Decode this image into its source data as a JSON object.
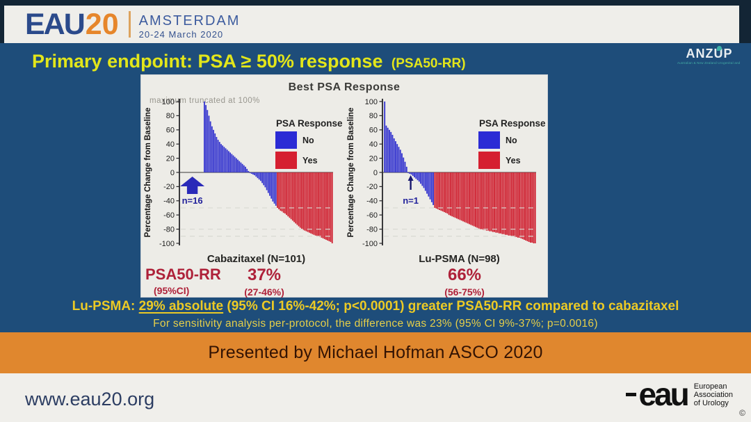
{
  "header": {
    "logo_eau": "EAU",
    "logo_20": "20",
    "city": "AMSTERDAM",
    "dates": "20-24 March 2020"
  },
  "title": {
    "main": "Primary endpoint: PSA ≥ 50% response",
    "sub": "(PSA50-RR)"
  },
  "anzup": {
    "name": "ANZUP",
    "tagline": "Australian & New Zealand Urogenital and Prostate Cancer Trials Group"
  },
  "panel": {
    "title": "Best PSA Response",
    "truncation_note": "maximum truncated at 100%"
  },
  "stats": {
    "label": "PSA50-RR",
    "sublabel": "(95%CI)",
    "cabazitaxel_value": "37%",
    "cabazitaxel_ci": "(27-46%)",
    "lupsma_value": "66%",
    "lupsma_ci": "(56-75%)"
  },
  "findings": {
    "line1_prefix": "Lu-PSMA: ",
    "line1_underlined": "29% absolute",
    "line1_suffix": " (95% CI 16%-42%; p<0.0001) greater PSA50-RR compared to cabazitaxel",
    "line2": "For sensitivity analysis per-protocol, the difference was 23% (95% CI 9%-37%; p=0.0016)"
  },
  "presenter_bar": {
    "text": "Presented by Michael Hofman ASCO 2020"
  },
  "footer": {
    "url": "www.eau20.org",
    "logo_text": "eau",
    "org_lines": [
      "European",
      "Association",
      "of Urology"
    ],
    "copyright": "©"
  },
  "colors": {
    "slide_bg": "#1e4d7a",
    "header_bg": "#efeeea",
    "title_yellow": "#e3e61a",
    "finding_yellow": "#ecca25",
    "stats_crimson": "#ae2139",
    "bar_blue": "#3434cf",
    "bar_red": "#cf1f2f",
    "orange_band": "#e0872e"
  },
  "chart_data": [
    {
      "type": "bar",
      "subtype": "waterfall",
      "title": "Best PSA Response",
      "xlabel": "Cabazitaxel (N=101)",
      "ylabel": "Percentage Change from Baseline",
      "ylim": [
        -100,
        100
      ],
      "yticks": [
        100,
        80,
        60,
        40,
        20,
        0,
        -20,
        -40,
        -60,
        -80,
        -100
      ],
      "threshold_lines": [
        -50,
        -80,
        -90
      ],
      "grid": "dashed thresholds only",
      "legend": {
        "title": "PSA Response",
        "position": "upper right of plot",
        "items": [
          {
            "label": "No",
            "color": "#2b2bd5"
          },
          {
            "label": "Yes",
            "color": "#d51f30"
          }
        ]
      },
      "truncation_note": "maximum truncated at 100%",
      "leading_empty_slots": 16,
      "annotation": {
        "label": "n=16",
        "slot": 8.5,
        "width_slots": 16,
        "style": "block"
      },
      "series": [
        {
          "name": "No (PSA50 response not achieved)",
          "color": "#3434cf",
          "values": [
            100,
            95,
            88,
            80,
            72,
            65,
            60,
            55,
            50,
            46,
            43,
            40,
            38,
            36,
            34,
            32,
            30,
            28,
            26,
            24,
            22,
            20,
            18,
            16,
            14,
            12,
            10,
            8,
            5,
            2,
            -1,
            -2,
            -3,
            -4,
            -6,
            -8,
            -10,
            -12,
            -15,
            -18,
            -21,
            -25,
            -29,
            -33,
            -37,
            -41,
            -44,
            -47
          ]
        },
        {
          "name": "Yes (≥50% PSA decline)",
          "color": "#cf1f2f",
          "values": [
            -50,
            -52,
            -54,
            -55,
            -57,
            -58,
            -60,
            -62,
            -64,
            -66,
            -68,
            -70,
            -72,
            -74,
            -76,
            -78,
            -80,
            -81,
            -82,
            -83,
            -84,
            -85,
            -86,
            -87,
            -88,
            -89,
            -90,
            -90,
            -91,
            -92,
            -93,
            -94,
            -95,
            -96,
            -97,
            -98,
            -100
          ]
        }
      ]
    },
    {
      "type": "bar",
      "subtype": "waterfall",
      "title": "Best PSA Response",
      "xlabel": "Lu-PSMA  (N=98)",
      "ylabel": "Percentage Change from Baseline",
      "ylim": [
        -100,
        100
      ],
      "yticks": [
        100,
        80,
        60,
        40,
        20,
        0,
        -20,
        -40,
        -60,
        -80,
        -100
      ],
      "threshold_lines": [
        -50,
        -80,
        -90
      ],
      "grid": "dashed thresholds only",
      "legend": {
        "title": "PSA Response",
        "position": "upper right of plot",
        "items": [
          {
            "label": "No",
            "color": "#2b2bd5"
          },
          {
            "label": "Yes",
            "color": "#d51f30"
          }
        ]
      },
      "leading_empty_slots": 1,
      "annotation": {
        "label": "n=1",
        "slot": 18,
        "width_slots": 1,
        "style": "thin"
      },
      "series": [
        {
          "name": "No (PSA50 response not achieved)",
          "color": "#3434cf",
          "values": [
            100,
            66,
            63,
            60,
            57,
            53,
            48,
            44,
            40,
            36,
            32,
            27,
            21,
            15,
            8,
            -1,
            -2,
            -3,
            -5,
            -7,
            -9,
            -11,
            -13,
            -16,
            -19,
            -22,
            -26,
            -30,
            -34,
            -38,
            -42,
            -46
          ]
        },
        {
          "name": "Yes (≥50% PSA decline)",
          "color": "#cf1f2f",
          "values": [
            -50,
            -51,
            -52,
            -53,
            -54,
            -55,
            -56,
            -57,
            -58,
            -60,
            -61,
            -62,
            -63,
            -64,
            -65,
            -66,
            -67,
            -68,
            -69,
            -70,
            -71,
            -72,
            -73,
            -74,
            -75,
            -76,
            -77,
            -78,
            -79,
            -80,
            -80,
            -81,
            -81,
            -82,
            -82,
            -83,
            -83,
            -84,
            -84,
            -85,
            -85,
            -86,
            -86,
            -87,
            -87,
            -88,
            -88,
            -89,
            -89,
            -90,
            -90,
            -91,
            -91,
            -92,
            -92,
            -93,
            -94,
            -95,
            -96,
            -97,
            -98,
            -99,
            -99,
            -100,
            -100
          ]
        }
      ]
    }
  ]
}
